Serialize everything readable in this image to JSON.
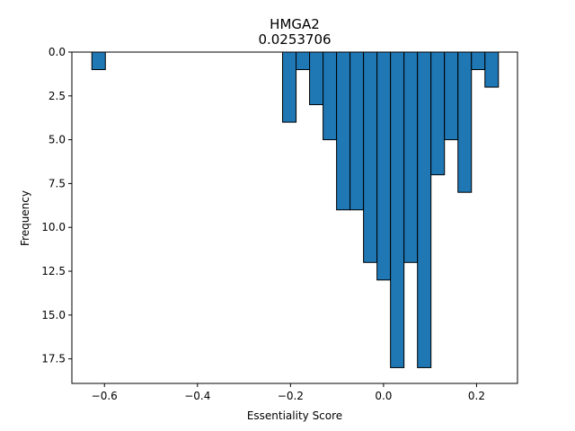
{
  "chart_data": {
    "type": "bar",
    "title": "HMGA2",
    "subtitle": "0.0253706",
    "xlabel": "Essentiality Score",
    "ylabel": "Frequency",
    "y_inverted": true,
    "xlim": [
      -0.67,
      0.288
    ],
    "ylim": [
      18.9,
      0
    ],
    "xticks": [
      -0.6,
      -0.4,
      -0.2,
      0.0,
      0.2
    ],
    "xtick_labels": [
      "−0.6",
      "−0.4",
      "−0.2",
      "0.0",
      "0.2"
    ],
    "yticks": [
      0.0,
      2.5,
      5.0,
      7.5,
      10.0,
      12.5,
      15.0,
      17.5
    ],
    "ytick_labels": [
      "0.0",
      "2.5",
      "5.0",
      "7.5",
      "10.0",
      "12.5",
      "15.0",
      "17.5"
    ],
    "bar_color": "#1f77b4",
    "edge_color": "#000000",
    "bars": [
      {
        "x0": -0.627,
        "x1": -0.598,
        "value": 1
      },
      {
        "x0": -0.217,
        "x1": -0.188,
        "value": 4
      },
      {
        "x0": -0.188,
        "x1": -0.159,
        "value": 1
      },
      {
        "x0": -0.159,
        "x1": -0.13,
        "value": 3
      },
      {
        "x0": -0.13,
        "x1": -0.101,
        "value": 5
      },
      {
        "x0": -0.101,
        "x1": -0.072,
        "value": 9
      },
      {
        "x0": -0.072,
        "x1": -0.043,
        "value": 9
      },
      {
        "x0": -0.043,
        "x1": -0.014,
        "value": 12
      },
      {
        "x0": -0.014,
        "x1": 0.015,
        "value": 13
      },
      {
        "x0": 0.015,
        "x1": 0.044,
        "value": 18
      },
      {
        "x0": 0.044,
        "x1": 0.073,
        "value": 12
      },
      {
        "x0": 0.073,
        "x1": 0.102,
        "value": 18
      },
      {
        "x0": 0.102,
        "x1": 0.131,
        "value": 7
      },
      {
        "x0": 0.131,
        "x1": 0.16,
        "value": 5
      },
      {
        "x0": 0.16,
        "x1": 0.189,
        "value": 8
      },
      {
        "x0": 0.189,
        "x1": 0.218,
        "value": 1
      },
      {
        "x0": 0.218,
        "x1": 0.247,
        "value": 2
      }
    ]
  }
}
